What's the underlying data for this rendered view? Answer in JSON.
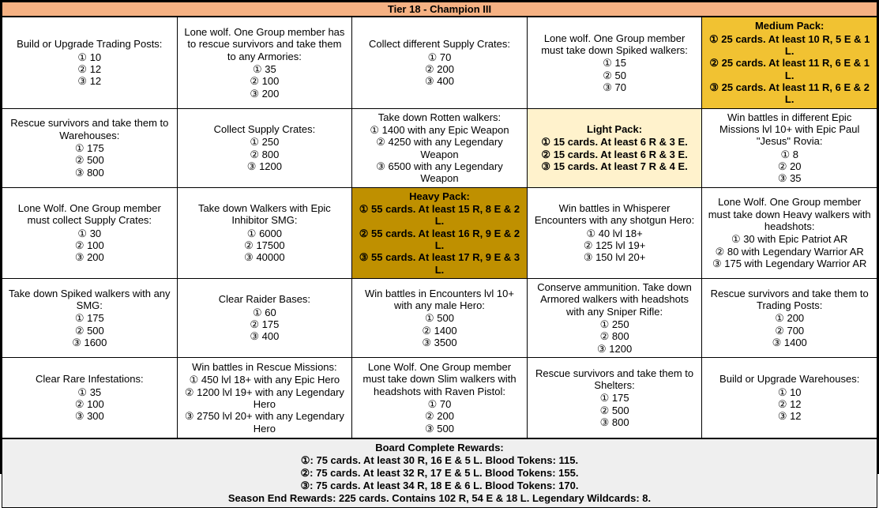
{
  "title": "Tier 18 - Champion III",
  "colors": {
    "header_bg": "#F5B183",
    "light_pack_bg": "#FFF2CC",
    "medium_pack_bg": "#F1C232",
    "heavy_pack_bg": "#BF9000",
    "footer_bg": "#EFEFEF",
    "border": "#000000"
  },
  "grid": {
    "rows": [
      {
        "cells": [
          {
            "highlight": "",
            "text": "Build or Upgrade Trading Posts:",
            "lines": [
              "① 10",
              "② 12",
              "③ 12"
            ]
          },
          {
            "highlight": "",
            "text": "Lone wolf. One Group member has to rescue survivors and take them to any Armories:",
            "lines": [
              "① 35",
              "② 100",
              "③ 200"
            ]
          },
          {
            "highlight": "",
            "text": "Collect different Supply Crates:",
            "lines": [
              "① 70",
              "② 200",
              "③ 400"
            ]
          },
          {
            "highlight": "",
            "text": "Lone wolf. One Group member must take down Spiked walkers:",
            "lines": [
              "① 15",
              "② 50",
              "③ 70"
            ]
          },
          {
            "highlight": "medium",
            "text": "Medium Pack:",
            "lines": [
              "① 25 cards. At least 10 R, 5 E & 1 L.",
              "② 25 cards. At least 11 R, 6 E & 1 L.",
              "③ 25 cards. At least 11 R, 6 E & 2 L."
            ]
          }
        ]
      },
      {
        "cells": [
          {
            "highlight": "",
            "text": "Rescue survivors and take them to Warehouses:",
            "lines": [
              "① 175",
              "② 500",
              "③ 800"
            ]
          },
          {
            "highlight": "",
            "text": "Collect Supply Crates:",
            "lines": [
              "① 250",
              "② 800",
              "③ 1200"
            ]
          },
          {
            "highlight": "",
            "text": "Take down Rotten walkers:",
            "lines": [
              "① 1400 with any Epic Weapon",
              "② 4250 with any Legendary Weapon",
              "③ 6500 with any Legendary Weapon"
            ]
          },
          {
            "highlight": "light",
            "text": "Light Pack:",
            "lines": [
              "① 15 cards. At least 6 R & 3 E.",
              "② 15 cards. At least 6 R & 3 E.",
              "③ 15 cards. At least 7 R & 4 E."
            ]
          },
          {
            "highlight": "",
            "text": "Win battles in different Epic Missions lvl 10+ with Epic Paul \"Jesus\" Rovia:",
            "lines": [
              "① 8",
              "② 20",
              "③ 35"
            ]
          }
        ]
      },
      {
        "cells": [
          {
            "highlight": "",
            "text": "Lone Wolf. One Group member must collect Supply Crates:",
            "lines": [
              "① 30",
              "② 100",
              "③ 200"
            ]
          },
          {
            "highlight": "",
            "text": "Take down Walkers with Epic Inhibitor SMG:",
            "lines": [
              "① 6000",
              "② 17500",
              "③ 40000"
            ]
          },
          {
            "highlight": "heavy",
            "text": "Heavy Pack:",
            "lines": [
              "① 55 cards. At least 15 R, 8 E & 2 L.",
              "② 55 cards. At least 16 R, 9 E & 2 L.",
              "③ 55 cards. At least 17 R, 9 E & 3 L."
            ]
          },
          {
            "highlight": "",
            "text": "Win battles in Whisperer Encounters with any shotgun Hero:",
            "lines": [
              "① 40 lvl 18+",
              "② 125 lvl 19+",
              "③ 150 lvl 20+"
            ]
          },
          {
            "highlight": "",
            "text": "Lone Wolf. One Group member must take down Heavy walkers with headshots:",
            "lines": [
              "① 30 with Epic Patriot AR",
              "② 80 with Legendary Warrior AR",
              "③ 175 with Legendary Warrior AR"
            ]
          }
        ]
      },
      {
        "cells": [
          {
            "highlight": "",
            "text": "Take down Spiked walkers with any SMG:",
            "lines": [
              "① 175",
              "② 500",
              "③ 1600"
            ]
          },
          {
            "highlight": "",
            "text": "Clear Raider Bases:",
            "lines": [
              "① 60",
              "② 175",
              "③ 400"
            ]
          },
          {
            "highlight": "",
            "text": "Win battles in Encounters lvl 10+ with any male Hero:",
            "lines": [
              "① 500",
              "② 1400",
              "③ 3500"
            ]
          },
          {
            "highlight": "",
            "text": "Conserve ammunition. Take down Armored walkers with headshots with any Sniper Rifle:",
            "lines": [
              "① 250",
              "② 800",
              "③ 1200"
            ]
          },
          {
            "highlight": "",
            "text": "Rescue survivors and take them to Trading Posts:",
            "lines": [
              "① 200",
              "② 700",
              "③ 1400"
            ]
          }
        ]
      },
      {
        "cells": [
          {
            "highlight": "",
            "text": "Clear Rare Infestations:",
            "lines": [
              "① 35",
              "② 100",
              "③ 300"
            ]
          },
          {
            "highlight": "",
            "text": "Win battles in Rescue Missions:",
            "lines": [
              "① 450 lvl 18+ with any Epic Hero",
              "② 1200 lvl 19+ with any Legendary Hero",
              "③ 2750 lvl 20+ with any Legendary Hero"
            ]
          },
          {
            "highlight": "",
            "text": "Lone Wolf. One Group member must take down Slim walkers with headshots with Raven Pistol:",
            "lines": [
              "① 70",
              "② 200",
              "③ 500"
            ]
          },
          {
            "highlight": "",
            "text": "Rescue survivors and take them to Shelters:",
            "lines": [
              "① 175",
              "② 500",
              "③ 800"
            ]
          },
          {
            "highlight": "",
            "text": "Build or Upgrade Warehouses:",
            "lines": [
              "① 10",
              "② 12",
              "③ 12"
            ]
          }
        ]
      }
    ]
  },
  "footer": {
    "title": "Board Complete Rewards:",
    "lines": [
      "①: 75 cards. At least 30 R, 16 E & 5 L. Blood Tokens: 115.",
      "②: 75 cards. At least 32 R, 17 E & 5 L. Blood Tokens: 155.",
      "③: 75 cards. At least 34 R, 18 E & 6 L. Blood Tokens: 170.",
      "Season End Rewards: 225 cards. Contains 102 R, 54 E & 18 L. Legendary Wildcards: 8."
    ]
  }
}
